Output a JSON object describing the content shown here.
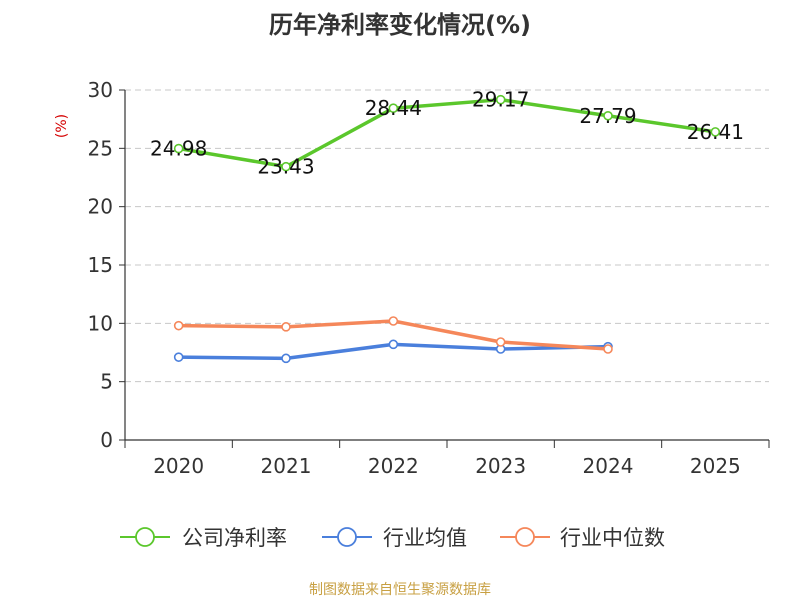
{
  "chart_data": {
    "type": "line",
    "title": "历年净利率变化情况(%)",
    "ylabel": "(%)",
    "xlabel": "",
    "categories": [
      "2020",
      "2021",
      "2022",
      "2023",
      "2024",
      "2025"
    ],
    "ylim": [
      0,
      30
    ],
    "yticks": [
      0,
      5,
      10,
      15,
      20,
      25,
      30
    ],
    "grid": true,
    "legend_position": "bottom",
    "series": [
      {
        "name": "公司净利率",
        "color": "#5bc72c",
        "values": [
          24.98,
          23.43,
          28.44,
          29.17,
          27.79,
          26.41
        ],
        "labels": [
          "24.98",
          "23.43",
          "28.44",
          "29.17",
          "27.79",
          "26.41"
        ]
      },
      {
        "name": "行业均值",
        "color": "#4a7fdc",
        "values": [
          7.1,
          7.0,
          8.2,
          7.8,
          8.0,
          null
        ],
        "labels": []
      },
      {
        "name": "行业中位数",
        "color": "#f5875a",
        "values": [
          9.8,
          9.7,
          10.2,
          8.4,
          7.8,
          null
        ],
        "labels": []
      }
    ],
    "source": "制图数据来自恒生聚源数据库"
  }
}
